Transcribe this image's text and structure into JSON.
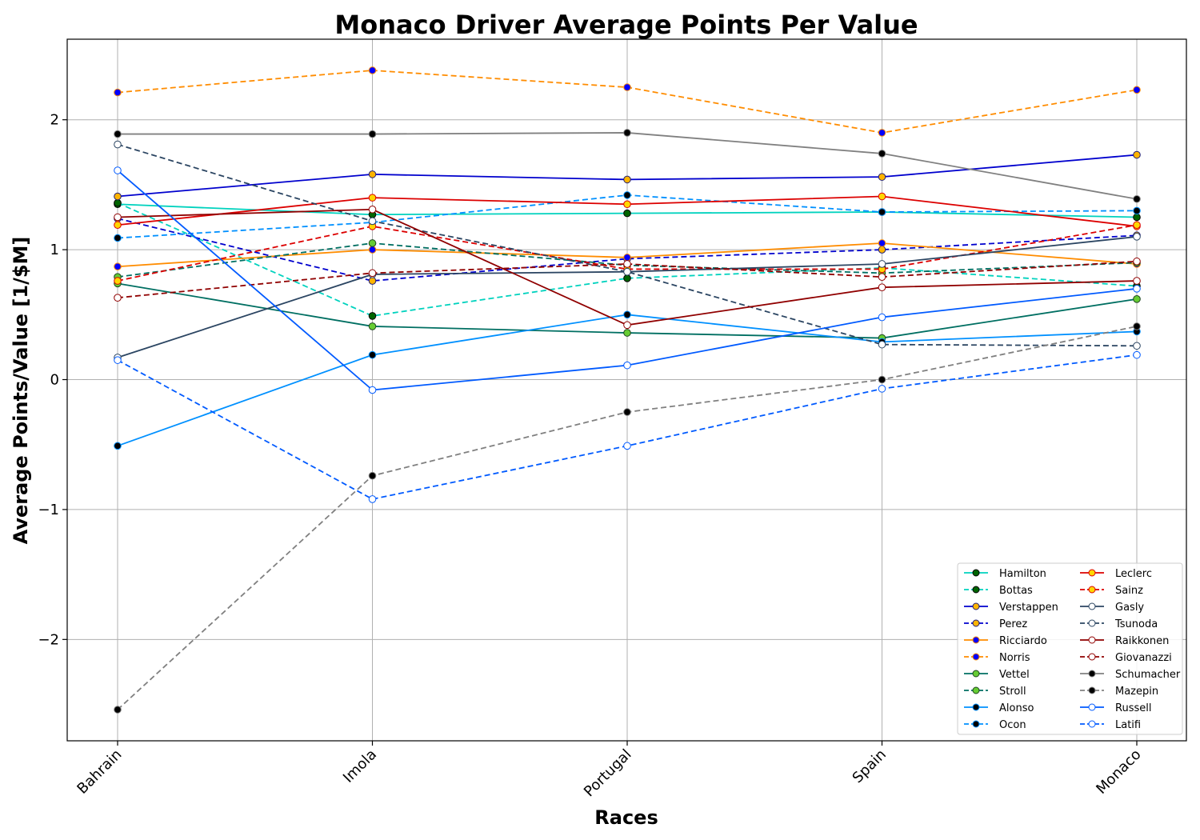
{
  "chart_data": {
    "type": "line",
    "title": "Monaco Driver Average Points Per Value",
    "xlabel": "Races",
    "ylabel": "Average Points/Value [1/$M]",
    "categories": [
      "Bahrain",
      "Imola",
      "Portugal",
      "Spain",
      "Monaco"
    ],
    "ylim": [
      -2.78,
      2.62
    ],
    "yticks": [
      -2,
      -1,
      0,
      1,
      2
    ],
    "ytick_labels": [
      "−2",
      "−1",
      "0",
      "1",
      "2"
    ],
    "grid": true,
    "legend_position": "lower-right",
    "legend_columns": 2,
    "series": [
      {
        "name": "Hamilton",
        "values": [
          1.35,
          1.27,
          1.28,
          1.29,
          1.25
        ],
        "color": "#00d2be",
        "dash": false,
        "marker_fill": "#006400",
        "marker_edge": "#000000"
      },
      {
        "name": "Bottas",
        "values": [
          1.36,
          0.49,
          0.78,
          0.86,
          0.72
        ],
        "color": "#00d2be",
        "dash": true,
        "marker_fill": "#006400",
        "marker_edge": "#000000"
      },
      {
        "name": "Verstappen",
        "values": [
          1.41,
          1.58,
          1.54,
          1.56,
          1.73
        ],
        "color": "#0000cd",
        "dash": false,
        "marker_fill": "#ffb400",
        "marker_edge": "#1e1e78"
      },
      {
        "name": "Perez",
        "values": [
          1.24,
          0.76,
          0.93,
          1.0,
          1.11
        ],
        "color": "#0000cd",
        "dash": true,
        "marker_fill": "#ffb400",
        "marker_edge": "#1e1e78"
      },
      {
        "name": "Ricciardo",
        "values": [
          0.87,
          1.0,
          0.94,
          1.05,
          0.89
        ],
        "color": "#ff8c00",
        "dash": false,
        "marker_fill": "#0000ff",
        "marker_edge": "#ff8c00"
      },
      {
        "name": "Norris",
        "values": [
          2.21,
          2.38,
          2.25,
          1.9,
          2.23
        ],
        "color": "#ff8c00",
        "dash": true,
        "marker_fill": "#0000ff",
        "marker_edge": "#ff8c00"
      },
      {
        "name": "Vettel",
        "values": [
          0.74,
          0.41,
          0.36,
          0.32,
          0.62
        ],
        "color": "#006f62",
        "dash": false,
        "marker_fill": "#66cc33",
        "marker_edge": "#1e4620"
      },
      {
        "name": "Stroll",
        "values": [
          0.79,
          1.05,
          0.88,
          0.82,
          0.9
        ],
        "color": "#006f62",
        "dash": true,
        "marker_fill": "#66cc33",
        "marker_edge": "#1e4620"
      },
      {
        "name": "Alonso",
        "values": [
          -0.51,
          0.19,
          0.5,
          0.29,
          0.37
        ],
        "color": "#0090ff",
        "dash": false,
        "marker_fill": "#000000",
        "marker_edge": "#0090ff"
      },
      {
        "name": "Ocon",
        "values": [
          1.09,
          1.21,
          1.42,
          1.29,
          1.3
        ],
        "color": "#0090ff",
        "dash": true,
        "marker_fill": "#000000",
        "marker_edge": "#0090ff"
      },
      {
        "name": "Leclerc",
        "values": [
          1.19,
          1.4,
          1.35,
          1.41,
          1.18
        ],
        "color": "#dc0000",
        "dash": false,
        "marker_fill": "#ffd700",
        "marker_edge": "#dc0000"
      },
      {
        "name": "Sainz",
        "values": [
          0.76,
          1.18,
          0.85,
          0.85,
          1.19
        ],
        "color": "#dc0000",
        "dash": true,
        "marker_fill": "#ffd700",
        "marker_edge": "#dc0000"
      },
      {
        "name": "Gasly",
        "values": [
          0.17,
          0.81,
          0.83,
          0.89,
          1.1
        ],
        "color": "#2b4562",
        "dash": false,
        "marker_fill": "#ffffff",
        "marker_edge": "#2b4562"
      },
      {
        "name": "Tsunoda",
        "values": [
          1.81,
          1.22,
          0.83,
          0.27,
          0.26
        ],
        "color": "#2b4562",
        "dash": true,
        "marker_fill": "#ffffff",
        "marker_edge": "#2b4562"
      },
      {
        "name": "Raikkonen",
        "values": [
          1.25,
          1.31,
          0.42,
          0.71,
          0.76
        ],
        "color": "#900000",
        "dash": false,
        "marker_fill": "#ffffff",
        "marker_edge": "#900000"
      },
      {
        "name": "Giovanazzi",
        "values": [
          0.63,
          0.82,
          0.89,
          0.79,
          0.91
        ],
        "color": "#900000",
        "dash": true,
        "marker_fill": "#ffffff",
        "marker_edge": "#900000"
      },
      {
        "name": "Schumacher",
        "values": [
          1.89,
          1.89,
          1.9,
          1.74,
          1.39
        ],
        "color": "#808080",
        "dash": false,
        "marker_fill": "#000000",
        "marker_edge": "#808080"
      },
      {
        "name": "Mazepin",
        "values": [
          -2.54,
          -0.74,
          -0.25,
          0.0,
          0.41
        ],
        "color": "#808080",
        "dash": true,
        "marker_fill": "#000000",
        "marker_edge": "#808080"
      },
      {
        "name": "Russell",
        "values": [
          1.61,
          -0.08,
          0.11,
          0.48,
          0.7
        ],
        "color": "#005aff",
        "dash": false,
        "marker_fill": "#ffffff",
        "marker_edge": "#005aff"
      },
      {
        "name": "Latifi",
        "values": [
          0.15,
          -0.92,
          -0.51,
          -0.07,
          0.19
        ],
        "color": "#005aff",
        "dash": true,
        "marker_fill": "#ffffff",
        "marker_edge": "#005aff"
      }
    ]
  }
}
